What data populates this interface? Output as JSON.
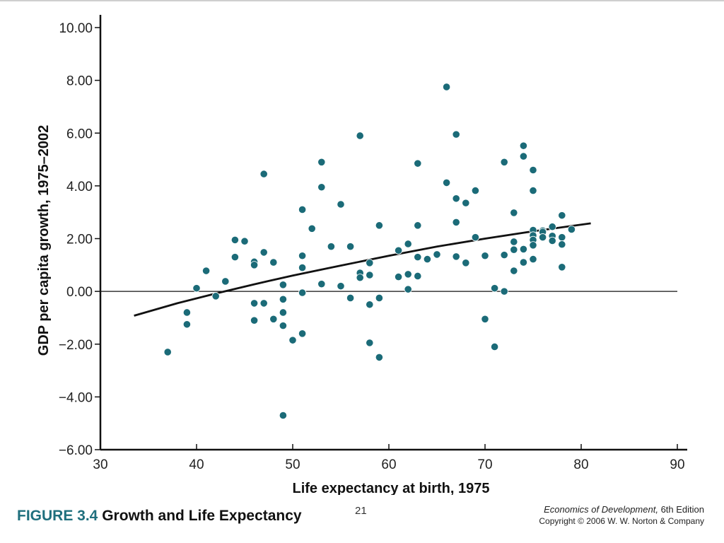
{
  "figure": {
    "number": "FIGURE 3.4",
    "title": "Growth and Life Expectancy",
    "page_number": "21",
    "book_title": "Economics of Development,",
    "edition": " 6th Edition",
    "copyright": "Copyright © 2006 W. W. Norton & Company"
  },
  "colors": {
    "marker": "#1b6b78",
    "caption_accent": "#1f6f7d",
    "axis": "#111111",
    "trend": "#111111"
  },
  "chart_data": {
    "type": "scatter",
    "xlabel": "Life expectancy at birth, 1975",
    "ylabel": "GDP per capita growth, 1975–2002",
    "xlim": [
      30,
      90
    ],
    "ylim": [
      -6,
      10
    ],
    "xticks": [
      "30",
      "40",
      "50",
      "60",
      "70",
      "80",
      "90"
    ],
    "yticks": [
      "−6.00",
      "−4.00",
      "−2.00",
      "0.00",
      "2.00",
      "4.00",
      "6.00",
      "8.00",
      "10.00"
    ],
    "zero_line": true,
    "grid": false,
    "points": [
      [
        37,
        -2.3
      ],
      [
        39,
        -0.8
      ],
      [
        39,
        -1.25
      ],
      [
        40,
        0.12
      ],
      [
        41,
        0.78
      ],
      [
        42,
        -0.18
      ],
      [
        43,
        0.38
      ],
      [
        44,
        1.95
      ],
      [
        44,
        1.3
      ],
      [
        45,
        1.9
      ],
      [
        46,
        1.12
      ],
      [
        46,
        1.0
      ],
      [
        46,
        -0.45
      ],
      [
        46,
        -1.1
      ],
      [
        47,
        4.45
      ],
      [
        47,
        1.48
      ],
      [
        47,
        -0.45
      ],
      [
        48,
        1.1
      ],
      [
        48,
        -1.05
      ],
      [
        49,
        0.25
      ],
      [
        49,
        -0.3
      ],
      [
        49,
        -0.8
      ],
      [
        49,
        -1.3
      ],
      [
        49,
        -4.7
      ],
      [
        50,
        -1.85
      ],
      [
        51,
        3.1
      ],
      [
        51,
        1.35
      ],
      [
        51,
        0.9
      ],
      [
        51,
        -0.05
      ],
      [
        51,
        -1.6
      ],
      [
        52,
        2.38
      ],
      [
        53,
        4.9
      ],
      [
        53,
        3.95
      ],
      [
        53,
        0.28
      ],
      [
        54,
        1.7
      ],
      [
        55,
        3.3
      ],
      [
        55,
        0.2
      ],
      [
        56,
        1.7
      ],
      [
        56,
        -0.25
      ],
      [
        57,
        5.9
      ],
      [
        57,
        0.7
      ],
      [
        57,
        0.52
      ],
      [
        58,
        1.08
      ],
      [
        58,
        0.62
      ],
      [
        58,
        -0.5
      ],
      [
        58,
        -1.95
      ],
      [
        59,
        2.5
      ],
      [
        59,
        -0.25
      ],
      [
        59,
        -2.5
      ],
      [
        61,
        1.55
      ],
      [
        61,
        0.55
      ],
      [
        62,
        1.8
      ],
      [
        62,
        0.65
      ],
      [
        62,
        0.08
      ],
      [
        63,
        4.85
      ],
      [
        63,
        2.5
      ],
      [
        63,
        1.3
      ],
      [
        63,
        0.58
      ],
      [
        64,
        1.22
      ],
      [
        65,
        1.4
      ],
      [
        66,
        7.75
      ],
      [
        66,
        4.12
      ],
      [
        67,
        5.95
      ],
      [
        67,
        3.52
      ],
      [
        67,
        2.62
      ],
      [
        67,
        1.32
      ],
      [
        68,
        3.35
      ],
      [
        68,
        1.08
      ],
      [
        69,
        3.82
      ],
      [
        69,
        2.05
      ],
      [
        70,
        1.35
      ],
      [
        70,
        -1.05
      ],
      [
        71,
        0.12
      ],
      [
        71,
        -2.1
      ],
      [
        72,
        4.9
      ],
      [
        72,
        1.38
      ],
      [
        72,
        0.0
      ],
      [
        73,
        2.98
      ],
      [
        73,
        1.88
      ],
      [
        73,
        1.58
      ],
      [
        73,
        0.78
      ],
      [
        74,
        5.52
      ],
      [
        74,
        5.12
      ],
      [
        74,
        1.6
      ],
      [
        74,
        1.1
      ],
      [
        75,
        4.6
      ],
      [
        75,
        3.82
      ],
      [
        75,
        2.32
      ],
      [
        75,
        2.12
      ],
      [
        75,
        1.95
      ],
      [
        75,
        1.75
      ],
      [
        75,
        1.22
      ],
      [
        76,
        2.3
      ],
      [
        76,
        2.25
      ],
      [
        76,
        2.05
      ],
      [
        77,
        2.45
      ],
      [
        77,
        2.1
      ],
      [
        77,
        1.92
      ],
      [
        78,
        2.88
      ],
      [
        78,
        2.05
      ],
      [
        78,
        1.78
      ],
      [
        78,
        0.92
      ],
      [
        79,
        2.35
      ]
    ],
    "trend_line": {
      "x": [
        33.5,
        38,
        42,
        46,
        50,
        55,
        60,
        65,
        70,
        75,
        81
      ],
      "y": [
        -0.92,
        -0.45,
        -0.08,
        0.27,
        0.6,
        0.98,
        1.35,
        1.7,
        2.0,
        2.28,
        2.58
      ]
    }
  }
}
